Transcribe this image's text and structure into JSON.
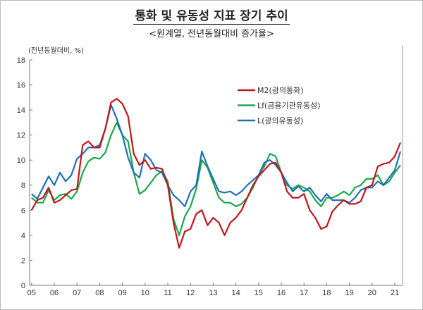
{
  "title": "통화 및 유동성 지표 장기 추이",
  "subtitle": "<원계열, 전년동월대비 증가율>",
  "chart_data": {
    "type": "line",
    "title": "통화 및 유동성 지표 장기 추이",
    "subtitle": "<원계열, 전년동월대비 증가율>",
    "ylabel": "(전년동월대비, %)",
    "xlabel": "",
    "ylim": [
      0,
      18
    ],
    "xlim": [
      2005,
      2021.35
    ],
    "yticks": [
      0,
      2,
      4,
      6,
      8,
      10,
      12,
      14,
      16,
      18
    ],
    "xtick_labels": [
      "05",
      "06",
      "07",
      "08",
      "09",
      "10",
      "11",
      "12",
      "13",
      "14",
      "15",
      "16",
      "17",
      "18",
      "19",
      "20",
      "21"
    ],
    "grid": false,
    "legend_placement": "top-right-inside",
    "x": [
      2005,
      2005.25,
      2005.5,
      2005.75,
      2006,
      2006.25,
      2006.5,
      2006.75,
      2007,
      2007.25,
      2007.5,
      2007.75,
      2008,
      2008.25,
      2008.5,
      2008.75,
      2009,
      2009.25,
      2009.5,
      2009.75,
      2010,
      2010.25,
      2010.5,
      2010.75,
      2011,
      2011.25,
      2011.5,
      2011.75,
      2012,
      2012.25,
      2012.5,
      2012.75,
      2013,
      2013.25,
      2013.5,
      2013.75,
      2014,
      2014.25,
      2014.5,
      2014.75,
      2015,
      2015.25,
      2015.5,
      2015.75,
      2016,
      2016.25,
      2016.5,
      2016.75,
      2017,
      2017.25,
      2017.5,
      2017.75,
      2018,
      2018.25,
      2018.5,
      2018.75,
      2019,
      2019.25,
      2019.5,
      2019.75,
      2020,
      2020.25,
      2020.5,
      2020.75,
      2021,
      2021.25
    ],
    "series": [
      {
        "name": "M2(광의통화)",
        "color": "#c0161c",
        "values": [
          6.0,
          6.8,
          7.0,
          7.8,
          6.6,
          6.8,
          7.2,
          7.6,
          7.7,
          11.2,
          11.5,
          11.0,
          11.0,
          12.5,
          14.6,
          14.9,
          14.5,
          13.5,
          10.5,
          9.6,
          10.0,
          9.3,
          9.4,
          9.3,
          8.0,
          5.0,
          3.0,
          4.3,
          4.5,
          5.7,
          6.0,
          4.8,
          5.4,
          5.0,
          4.0,
          5.0,
          5.4,
          6.0,
          7.0,
          8.0,
          8.7,
          9.2,
          9.7,
          9.8,
          9.0,
          7.5,
          7.0,
          7.0,
          7.3,
          6.0,
          5.4,
          4.5,
          4.7,
          5.9,
          6.4,
          6.8,
          6.5,
          6.5,
          6.7,
          7.8,
          8.0,
          9.5,
          9.7,
          9.8,
          10.3,
          11.4
        ]
      },
      {
        "name": "Lf(금융기관유동성)",
        "color": "#1aa84b",
        "values": [
          7.0,
          6.6,
          6.6,
          7.6,
          6.8,
          7.2,
          7.3,
          6.9,
          7.5,
          9.0,
          9.9,
          10.2,
          10.1,
          10.6,
          12.0,
          13.0,
          12.0,
          11.5,
          9.0,
          7.3,
          7.6,
          8.2,
          8.8,
          9.1,
          8.3,
          5.3,
          4.0,
          5.5,
          6.3,
          7.7,
          10.0,
          9.4,
          8.2,
          7.0,
          6.6,
          6.6,
          6.3,
          6.5,
          7.0,
          7.8,
          8.8,
          9.5,
          10.5,
          10.3,
          9.0,
          8.0,
          7.7,
          8.0,
          7.8,
          7.5,
          6.8,
          6.3,
          7.0,
          7.0,
          7.2,
          7.5,
          7.2,
          7.8,
          8.0,
          8.5,
          8.5,
          8.8,
          8.0,
          8.3,
          9.0,
          9.6
        ]
      },
      {
        "name": "L(광의유동성)",
        "color": "#1f6fb8",
        "values": [
          7.3,
          6.9,
          7.8,
          8.7,
          8.0,
          9.0,
          8.3,
          8.8,
          10.1,
          10.5,
          11.0,
          11.0,
          11.2,
          12.5,
          14.4,
          13.3,
          12.0,
          10.2,
          9.0,
          8.6,
          10.5,
          10.0,
          9.2,
          9.0,
          8.0,
          7.2,
          6.8,
          6.3,
          7.5,
          8.0,
          10.7,
          9.5,
          8.5,
          7.5,
          7.4,
          7.5,
          7.2,
          7.5,
          8.0,
          8.4,
          8.8,
          9.8,
          10.0,
          9.6,
          9.0,
          8.2,
          7.5,
          7.9,
          7.5,
          7.8,
          7.2,
          6.7,
          7.3,
          6.8,
          6.8,
          6.8,
          6.6,
          7.0,
          7.6,
          7.8,
          7.8,
          8.3,
          8.0,
          8.6,
          9.2,
          10.7
        ]
      }
    ]
  }
}
